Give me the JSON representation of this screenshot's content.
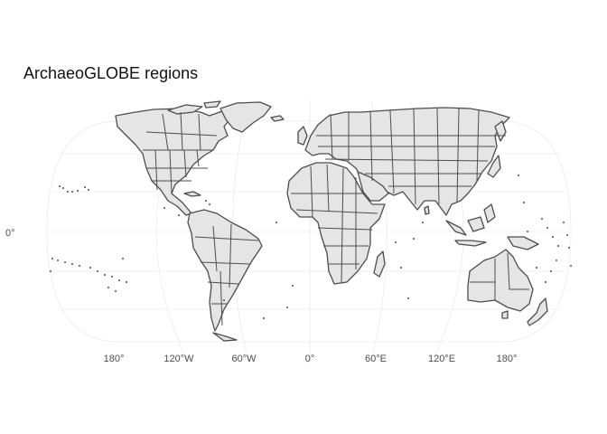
{
  "title": "ArchaeoGLOBE regions",
  "map": {
    "projection": "equal-earth",
    "land_fill": "#e5e5e5",
    "border_color": "#4d4d4d",
    "graticule_color": "#ebebeb",
    "x_tick_labels": [
      "180°",
      "120°W",
      "60°W",
      "0°",
      "60°E",
      "120°E",
      "180°"
    ],
    "y_tick_labels": [
      "0°"
    ]
  }
}
